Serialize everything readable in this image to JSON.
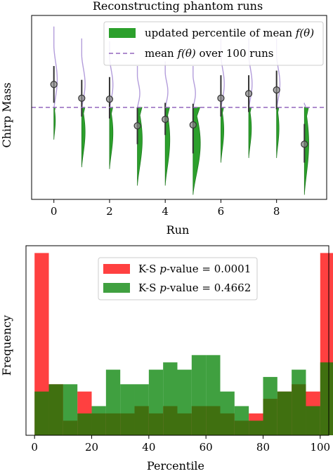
{
  "chart_data": [
    {
      "type": "violin",
      "title": "Reconstructing phantom runs",
      "xlabel": "Run",
      "ylabel": "Chirp Mass",
      "xlim": [
        -0.8,
        9.8
      ],
      "ylim": [
        -1.0,
        1.0
      ],
      "x_ticks": [
        0,
        2,
        4,
        6,
        8
      ],
      "grid": false,
      "legend_position": "top-right",
      "legend": {
        "patch_label": "updated percentile of mean ",
        "patch_math": "f(θ)",
        "line_label": "mean ",
        "line_math": "f(θ)",
        "line_suffix": " over 100 runs"
      },
      "reference_line": 0.0,
      "runs": [
        {
          "run": 0,
          "median": 0.25,
          "ci": [
            0.05,
            0.45
          ],
          "upper_top": 0.88,
          "upper_width": 0.14,
          "lower_bottom": -0.35,
          "lower_width": 0.06
        },
        {
          "run": 1,
          "median": 0.1,
          "ci": [
            -0.1,
            0.3
          ],
          "upper_top": 0.75,
          "upper_width": 0.14,
          "lower_bottom": -0.65,
          "lower_width": 0.14
        },
        {
          "run": 2,
          "median": 0.09,
          "ci": [
            -0.12,
            0.33
          ],
          "upper_top": 0.72,
          "upper_width": 0.14,
          "lower_bottom": -0.67,
          "lower_width": 0.14
        },
        {
          "run": 3,
          "median": -0.2,
          "ci": [
            -0.4,
            0.0
          ],
          "upper_top": 0.45,
          "upper_width": 0.1,
          "lower_bottom": -0.85,
          "lower_width": 0.2
        },
        {
          "run": 4,
          "median": -0.13,
          "ci": [
            -0.3,
            0.05
          ],
          "upper_top": 0.5,
          "upper_width": 0.11,
          "lower_bottom": -0.85,
          "lower_width": 0.19
        },
        {
          "run": 5,
          "median": -0.19,
          "ci": [
            -0.5,
            0.04
          ],
          "upper_top": 0.45,
          "upper_width": 0.1,
          "lower_bottom": -0.95,
          "lower_width": 0.3
        },
        {
          "run": 6,
          "median": 0.1,
          "ci": [
            -0.1,
            0.35
          ],
          "upper_top": 0.75,
          "upper_width": 0.14,
          "lower_bottom": -0.6,
          "lower_width": 0.12
        },
        {
          "run": 7,
          "median": 0.15,
          "ci": [
            -0.05,
            0.35
          ],
          "upper_top": 0.75,
          "upper_width": 0.14,
          "lower_bottom": -0.55,
          "lower_width": 0.11
        },
        {
          "run": 8,
          "median": 0.19,
          "ci": [
            -0.02,
            0.4
          ],
          "upper_top": 0.75,
          "upper_width": 0.14,
          "lower_bottom": -0.55,
          "lower_width": 0.1
        },
        {
          "run": 9,
          "median": -0.4,
          "ci": [
            -0.6,
            -0.18
          ],
          "upper_top": 0.05,
          "upper_width": 0.04,
          "lower_bottom": -0.95,
          "lower_width": 0.18
        }
      ]
    },
    {
      "type": "histogram",
      "title": "",
      "xlabel": "Percentile",
      "ylabel": "Frequency",
      "xlim": [
        -3,
        103
      ],
      "ylim": [
        0,
        26
      ],
      "x_ticks": [
        0,
        20,
        40,
        60,
        80,
        100
      ],
      "grid": false,
      "legend_position": "top-center",
      "bin_width": 5,
      "bin_edges_start": 0,
      "series": [
        {
          "name": "K-S ",
          "name_math": "p",
          "name_suffix": "-value = 0.0001",
          "color": "#ff0000",
          "values": [
            25,
            7,
            2,
            6,
            3,
            3,
            3,
            4,
            3,
            4,
            3,
            4,
            4,
            3,
            2,
            3,
            5,
            6,
            7,
            6,
            25
          ]
        },
        {
          "name": "K-S ",
          "name_math": "p",
          "name_suffix": "-value = 0.4662",
          "color": "#008000",
          "values": [
            6,
            7,
            7,
            3,
            4,
            9,
            7,
            7,
            9,
            10,
            9,
            11,
            11,
            6,
            4,
            2,
            8,
            6,
            9,
            4,
            10
          ]
        }
      ]
    }
  ]
}
